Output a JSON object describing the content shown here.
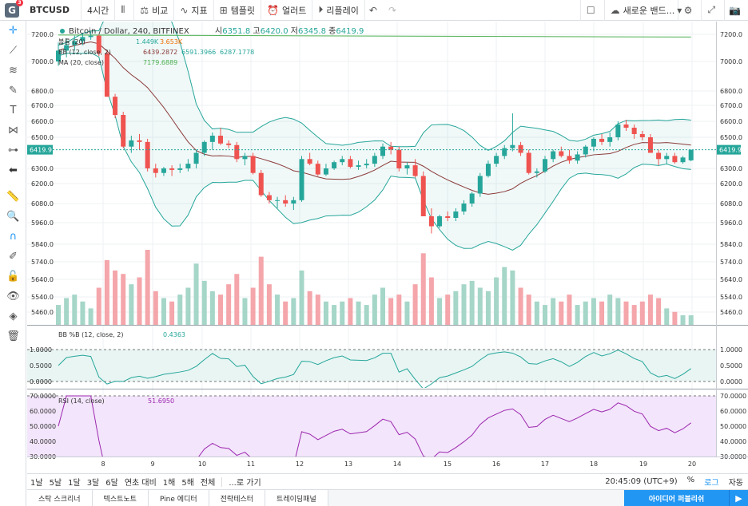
{
  "toolbar": {
    "symbol": "BTCUSD",
    "interval": "4시간",
    "compare": "비교",
    "indicators": "지표",
    "templates": "템플릿",
    "alert": "얼러트",
    "replay": "리플레이",
    "new_band": "새로운 밴드..."
  },
  "legend": {
    "title": "Bitcoin / Dollar, 240, BITFINEX",
    "ohlc": [
      {
        "label": "시",
        "value": "6351.8"
      },
      {
        "label": "고",
        "value": "6420.0"
      },
      {
        "label": "저",
        "value": "6345.8"
      },
      {
        "label": "종",
        "value": "6419.9"
      }
    ],
    "volume": {
      "name": "볼륨 (20)",
      "v1": "1.449K",
      "v2": "3.653K"
    },
    "bb": {
      "name": "BB (12, close, 2)",
      "v1": "6439.2872",
      "v2": "6591.3966",
      "v3": "6287.1778"
    },
    "ma": {
      "name": "MA (20, close)",
      "v1": "7179.6889"
    }
  },
  "price_axis": {
    "ticks": [
      "7200.0",
      "7000.0",
      "6800.0",
      "6700.0",
      "6600.0",
      "6500.0",
      "6300.0",
      "6200.0",
      "6080.0",
      "5960.0",
      "5840.0",
      "5740.0",
      "5640.0",
      "5540.0",
      "5460.0"
    ],
    "current": "6419.9"
  },
  "bbp_panel": {
    "legend": "BB %B (12, close, 2)",
    "value": "0.4363",
    "ticks": [
      "1.0000",
      "0.5000",
      "0.0000"
    ]
  },
  "rsi_panel": {
    "legend": "RSI (14, close)",
    "value": "51.6950",
    "ticks": [
      "70.0000",
      "60.0000",
      "50.0000",
      "40.0000",
      "30.0000"
    ]
  },
  "time_axis": [
    "8",
    "9",
    "10",
    "11",
    "12",
    "13",
    "14",
    "15",
    "16",
    "17",
    "18",
    "19",
    "20"
  ],
  "ranges": [
    "1날",
    "5날",
    "1달",
    "3달",
    "6달",
    "연초 대비",
    "1해",
    "5해",
    "전체"
  ],
  "goto": "...로 가기",
  "clock": "20:45:09 (UTC+9)",
  "scale_opts": [
    "%",
    "로그",
    "자동"
  ],
  "bottom_tabs": [
    "스탁 스크리너",
    "텍스트노트",
    "Pine 에디터",
    "전략테스터",
    "트레이딩패널"
  ],
  "publish": "아이디어 퍼블리쉬",
  "colors": {
    "up": "#26a69a",
    "down": "#ef5350",
    "bb": "#26a69a",
    "ma": "#4caf50",
    "basis": "#8b3a3a",
    "rsi": "#9c27b0"
  },
  "chart_data": {
    "type": "candlestick",
    "x": [
      "7",
      "8",
      "9",
      "10",
      "11",
      "12",
      "13",
      "14",
      "15",
      "16",
      "17",
      "18",
      "19",
      "20"
    ],
    "candles": [
      [
        7000,
        7140,
        6970,
        7080
      ],
      [
        7080,
        7170,
        7030,
        7120
      ],
      [
        7120,
        7190,
        7080,
        7150
      ],
      [
        7150,
        7210,
        7120,
        7180
      ],
      [
        7180,
        7220,
        7160,
        7190
      ],
      [
        7190,
        7200,
        7040,
        7060
      ],
      [
        7060,
        7080,
        6760,
        6760
      ],
      [
        6760,
        6780,
        6620,
        6640
      ],
      [
        6640,
        6660,
        6430,
        6440
      ],
      [
        6440,
        6510,
        6400,
        6480
      ],
      [
        6480,
        6520,
        6420,
        6470
      ],
      [
        6470,
        6490,
        6280,
        6300
      ],
      [
        6300,
        6330,
        6240,
        6270
      ],
      [
        6270,
        6310,
        6250,
        6300
      ],
      [
        6300,
        6320,
        6250,
        6290
      ],
      [
        6290,
        6330,
        6270,
        6300
      ],
      [
        6300,
        6360,
        6280,
        6330
      ],
      [
        6330,
        6420,
        6300,
        6400
      ],
      [
        6400,
        6480,
        6380,
        6470
      ],
      [
        6470,
        6530,
        6420,
        6510
      ],
      [
        6510,
        6560,
        6450,
        6460
      ],
      [
        6460,
        6480,
        6430,
        6450
      ],
      [
        6450,
        6470,
        6340,
        6360
      ],
      [
        6360,
        6400,
        6320,
        6380
      ],
      [
        6380,
        6400,
        6260,
        6270
      ],
      [
        6270,
        6290,
        6120,
        6130
      ],
      [
        6130,
        6150,
        6080,
        6100
      ],
      [
        6100,
        6120,
        6050,
        6100
      ],
      [
        6100,
        6130,
        6060,
        6080
      ],
      [
        6080,
        6120,
        6040,
        6100
      ],
      [
        6100,
        6380,
        6090,
        6360
      ],
      [
        6360,
        6400,
        6320,
        6330
      ],
      [
        6330,
        6350,
        6250,
        6260
      ],
      [
        6260,
        6330,
        6250,
        6300
      ],
      [
        6300,
        6350,
        6290,
        6340
      ],
      [
        6340,
        6380,
        6320,
        6360
      ],
      [
        6360,
        6380,
        6300,
        6310
      ],
      [
        6310,
        6350,
        6290,
        6320
      ],
      [
        6320,
        6360,
        6300,
        6330
      ],
      [
        6330,
        6400,
        6310,
        6380
      ],
      [
        6380,
        6460,
        6360,
        6440
      ],
      [
        6440,
        6470,
        6390,
        6420
      ],
      [
        6420,
        6440,
        6280,
        6300
      ],
      [
        6300,
        6340,
        6260,
        6320
      ],
      [
        6320,
        6360,
        6240,
        6250
      ],
      [
        6250,
        6280,
        6000,
        6000
      ],
      [
        6000,
        6050,
        5900,
        5940
      ],
      [
        5940,
        6010,
        5930,
        6000
      ],
      [
        6000,
        6030,
        5970,
        5990
      ],
      [
        5990,
        6050,
        5970,
        6030
      ],
      [
        6030,
        6100,
        6010,
        6080
      ],
      [
        6080,
        6150,
        6060,
        6140
      ],
      [
        6140,
        6270,
        6120,
        6250
      ],
      [
        6250,
        6350,
        6240,
        6330
      ],
      [
        6330,
        6400,
        6310,
        6380
      ],
      [
        6380,
        6450,
        6360,
        6430
      ],
      [
        6430,
        6650,
        6410,
        6450
      ],
      [
        6450,
        6470,
        6380,
        6400
      ],
      [
        6400,
        6420,
        6260,
        6270
      ],
      [
        6270,
        6300,
        6240,
        6280
      ],
      [
        6280,
        6380,
        6270,
        6360
      ],
      [
        6360,
        6420,
        6340,
        6410
      ],
      [
        6410,
        6440,
        6370,
        6380
      ],
      [
        6380,
        6420,
        6330,
        6350
      ],
      [
        6350,
        6410,
        6330,
        6390
      ],
      [
        6390,
        6450,
        6370,
        6440
      ],
      [
        6440,
        6500,
        6410,
        6490
      ],
      [
        6490,
        6520,
        6450,
        6470
      ],
      [
        6470,
        6530,
        6440,
        6500
      ],
      [
        6500,
        6600,
        6480,
        6580
      ],
      [
        6580,
        6610,
        6540,
        6560
      ],
      [
        6560,
        6580,
        6490,
        6520
      ],
      [
        6520,
        6540,
        6480,
        6500
      ],
      [
        6500,
        6520,
        6400,
        6400
      ],
      [
        6400,
        6420,
        6320,
        6360
      ],
      [
        6360,
        6400,
        6330,
        6380
      ],
      [
        6380,
        6400,
        6330,
        6340
      ],
      [
        6340,
        6380,
        6330,
        6370
      ],
      [
        6352,
        6420,
        6346,
        6420
      ]
    ],
    "volume_range": [
      0,
      4000
    ]
  }
}
